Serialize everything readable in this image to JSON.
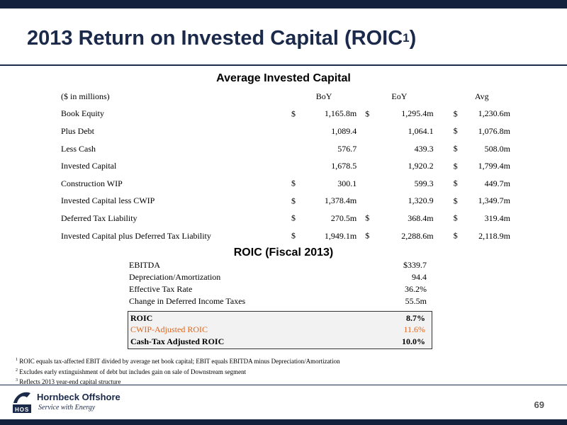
{
  "title": {
    "text": "2013 Return on Invested Capital (ROIC",
    "sup": "1",
    "close": ")"
  },
  "invested_capital": {
    "heading": "Average Invested Capital",
    "columns": [
      "($ in millions)",
      "BoY",
      "EoY",
      "Avg"
    ],
    "rows": [
      {
        "label": "Book Equity",
        "boy": {
          "dollar": "$",
          "val": "1,165.8m"
        },
        "eoy": {
          "dollar": "$",
          "val": "1,295.4m"
        },
        "avg": {
          "dollar": "$",
          "val": "1,230.6m"
        }
      },
      {
        "label": "Plus Debt",
        "boy": {
          "dollar": "",
          "val": "1,089.4"
        },
        "eoy": {
          "dollar": "",
          "val": "1,064.1"
        },
        "avg": {
          "dollar": "$",
          "val": "1,076.8m"
        }
      },
      {
        "label": "Less Cash",
        "boy": {
          "dollar": "",
          "val": "576.7"
        },
        "eoy": {
          "dollar": "",
          "val": "439.3"
        },
        "avg": {
          "dollar": "$",
          "val": "508.0m"
        }
      },
      {
        "label": "Invested Capital",
        "boy": {
          "dollar": "",
          "val": "1,678.5"
        },
        "eoy": {
          "dollar": "",
          "val": "1,920.2"
        },
        "avg": {
          "dollar": "$",
          "val": "1,799.4m"
        }
      },
      {
        "label": "Construction WIP",
        "boy": {
          "dollar": "$",
          "val": "300.1"
        },
        "eoy": {
          "dollar": "",
          "val": "599.3"
        },
        "avg": {
          "dollar": "$",
          "val": "449.7m"
        }
      },
      {
        "label": "Invested Capital less CWIP",
        "boy": {
          "dollar": "$",
          "val": "1,378.4m"
        },
        "eoy": {
          "dollar": "",
          "val": "1,320.9"
        },
        "avg": {
          "dollar": "$",
          "val": "1,349.7m"
        }
      },
      {
        "label": "Deferred Tax Liability",
        "boy": {
          "dollar": "$",
          "val": "270.5m"
        },
        "eoy": {
          "dollar": "$",
          "val": "368.4m"
        },
        "avg": {
          "dollar": "$",
          "val": "319.4m"
        }
      },
      {
        "label": "Invested Capital plus Deferred Tax Liability",
        "boy": {
          "dollar": "$",
          "val": "1,949.1m"
        },
        "eoy": {
          "dollar": "$",
          "val": "2,288.6m"
        },
        "avg": {
          "dollar": "$",
          "val": "2,118.9m"
        }
      }
    ]
  },
  "roic": {
    "heading": "ROIC (Fiscal 2013)",
    "rows": [
      {
        "label": "EBITDA",
        "value": "$339.7"
      },
      {
        "label": "Depreciation/Amortization",
        "value": "94.4"
      },
      {
        "label": "Effective Tax Rate",
        "value": "36.2%"
      },
      {
        "label": "Change in Deferred Income Taxes",
        "value": "55.5m"
      }
    ],
    "box": [
      {
        "label": "ROIC",
        "value": "8.7%"
      },
      {
        "label": "CWIP-Adjusted ROIC",
        "value": "11.6%"
      },
      {
        "label": "Cash-Tax Adjusted ROIC",
        "value": "10.0%"
      }
    ]
  },
  "footnotes": [
    {
      "num": "1",
      "text": "ROIC equals tax-affected EBIT divided by average net book capital; EBIT equals EBITDA minus Depreciation/Amortization"
    },
    {
      "num": "2",
      "text": "Excludes early extinguishment of debt  but includes gain on sale of Downstream segment"
    },
    {
      "num": "3",
      "text": "Reflects 2013 year-end capital structure"
    }
  ],
  "footer": {
    "company": "Hornbeck Offshore",
    "tagline": "Service with Energy",
    "logo_letters": "HOS",
    "page_number": "69"
  },
  "colors": {
    "navy": "#1b2a4a",
    "bar": "#13213d",
    "orange": "#e0661c"
  }
}
